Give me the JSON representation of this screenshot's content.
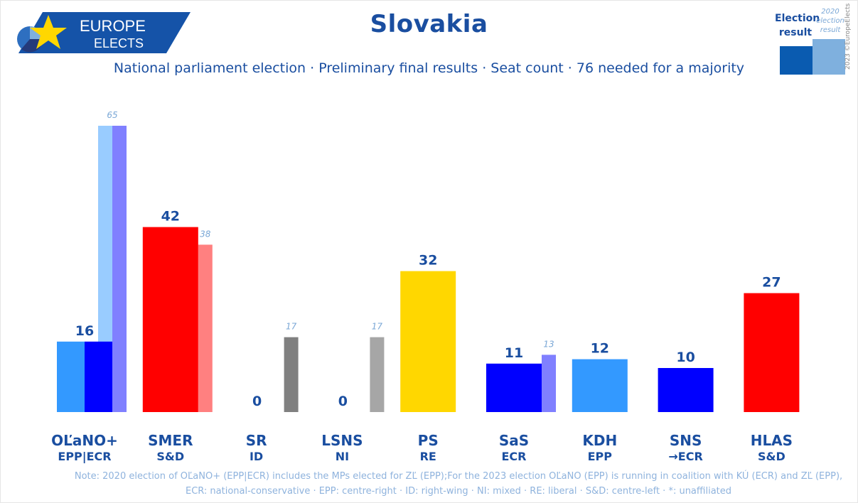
{
  "logo": {
    "line1": "EUROPE",
    "line2": "ELECTS"
  },
  "title": "Slovakia",
  "subtitle": "National parliament election · Preliminary final results · Seat count · 76 needed for a majority",
  "legend": {
    "current": "Election result",
    "previous": "2020 election result",
    "copyright": "2023 ©EuropeElects"
  },
  "colors": {
    "title": "#1a4ea0",
    "prev_label": "#7aa7d6",
    "note": "#8fb3dd"
  },
  "chart_data": {
    "type": "bar",
    "categories": [
      "OĽaNO+",
      "SMER",
      "SR",
      "LSNS",
      "PS",
      "SaS",
      "KDH",
      "SNS",
      "HLAS"
    ],
    "groups": [
      "EPP|ECR",
      "S&D",
      "ID",
      "NI",
      "RE",
      "ECR",
      "EPP",
      "→ECR",
      "S&D"
    ],
    "series": [
      {
        "name": "Election result",
        "values": [
          16,
          42,
          0,
          0,
          32,
          11,
          12,
          10,
          27
        ]
      },
      {
        "name": "2020 election result",
        "values": [
          65,
          38,
          17,
          17,
          null,
          13,
          null,
          null,
          null
        ]
      }
    ],
    "bar_colors": [
      [
        "#3399ff",
        "#0000ff"
      ],
      [
        "#ff0000"
      ],
      [
        "#7f7f7f"
      ],
      [
        "#a6a6a6"
      ],
      [
        "#ffd700"
      ],
      [
        "#0000ff"
      ],
      [
        "#3399ff"
      ],
      [
        "#0000ff"
      ],
      [
        "#ff0000"
      ]
    ],
    "prev_colors": [
      [
        "#99ccff",
        "#8080ff"
      ],
      [
        "#ff8080"
      ],
      [
        "#808080"
      ],
      [
        "#a6a6a6"
      ],
      [],
      [
        "#8080ff"
      ],
      [],
      [],
      []
    ],
    "ylim": [
      0,
      70
    ]
  },
  "notes": {
    "line1": "Note: 2020 election of OĽaNO+ (EPP|ECR) includes the MPs elected for ZĽ (EPP);For the 2023 election OĽaNO (EPP) is running in coalition with KÚ (ECR) and ZĽ (EPP),",
    "line2": "ECR: national-conservative · EPP: centre-right · ID: right-wing · NI: mixed · RE: liberal · S&D: centre-left · *: unaffiliated"
  }
}
